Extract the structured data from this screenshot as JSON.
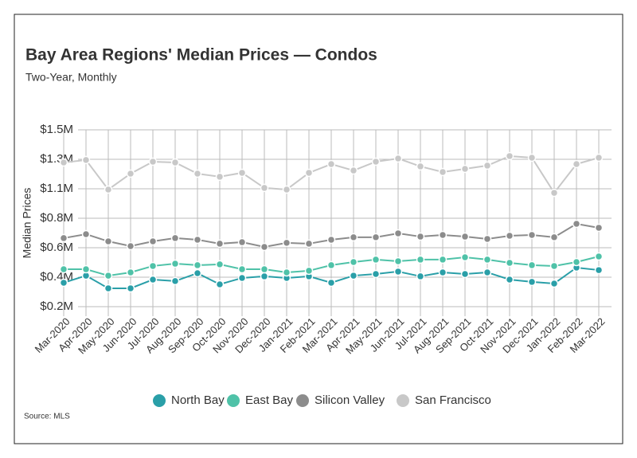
{
  "chart_data": {
    "type": "line",
    "title": "Bay Area Regions' Median Prices — Condos",
    "subtitle": "Two-Year, Monthly",
    "y_label": "Median Prices",
    "source": "Source: MLS",
    "categories": [
      "Mar-2020",
      "Apr-2020",
      "May-2020",
      "Jun-2020",
      "Jul-2020",
      "Aug-2020",
      "Sep-2020",
      "Oct-2020",
      "Nov-2020",
      "Dec-2020",
      "Jan-2021",
      "Feb-2021",
      "Mar-2021",
      "Apr-2021",
      "May-2021",
      "Jun-2021",
      "Jul-2021",
      "Aug-2021",
      "Sep-2021",
      "Oct-2021",
      "Nov-2021",
      "Dec-2021",
      "Jan-2022",
      "Feb-2022",
      "Mar-2022"
    ],
    "series": [
      {
        "name": "North Bay",
        "color": "#2a9fa8",
        "values": [
          376000,
          428000,
          335000,
          335000,
          399000,
          388000,
          446000,
          364000,
          411000,
          423000,
          411000,
          423000,
          376000,
          428000,
          440000,
          458000,
          423000,
          452000,
          440000,
          452000,
          399000,
          382000,
          370000,
          487000,
          469000
        ]
      },
      {
        "name": "East Bay",
        "color": "#4fc2a8",
        "values": [
          475000,
          475000,
          428000,
          452000,
          499000,
          516000,
          505000,
          511000,
          475000,
          475000,
          452000,
          464000,
          505000,
          528000,
          546000,
          534000,
          546000,
          546000,
          563000,
          546000,
          522000,
          505000,
          499000,
          528000,
          569000
        ]
      },
      {
        "name": "Silicon Valley",
        "color": "#8c8c8c",
        "values": [
          704000,
          733000,
          680000,
          645000,
          680000,
          704000,
          692000,
          663000,
          674000,
          639000,
          669000,
          663000,
          692000,
          710000,
          710000,
          739000,
          715000,
          727000,
          715000,
          698000,
          721000,
          727000,
          710000,
          809000,
          780000
        ]
      },
      {
        "name": "San Francisco",
        "color": "#c8c8c8",
        "values": [
          1260000,
          1278000,
          1061000,
          1178000,
          1266000,
          1260000,
          1178000,
          1155000,
          1184000,
          1073000,
          1061000,
          1184000,
          1248000,
          1201000,
          1266000,
          1289000,
          1231000,
          1190000,
          1213000,
          1237000,
          1307000,
          1295000,
          1037000,
          1248000,
          1295000
        ]
      }
    ],
    "ylim": [
      200000,
      1500000
    ],
    "yticks": [
      {
        "value": 200000,
        "label": "$0.2M"
      },
      {
        "value": 416667,
        "label": "$0.4M"
      },
      {
        "value": 633333,
        "label": "$0.6M"
      },
      {
        "value": 850000,
        "label": "$0.8M"
      },
      {
        "value": 1066667,
        "label": "$1.1M"
      },
      {
        "value": 1283333,
        "label": "$1.3M"
      },
      {
        "value": 1500000,
        "label": "$1.5M"
      }
    ],
    "grid": true,
    "legend": "bottom"
  }
}
